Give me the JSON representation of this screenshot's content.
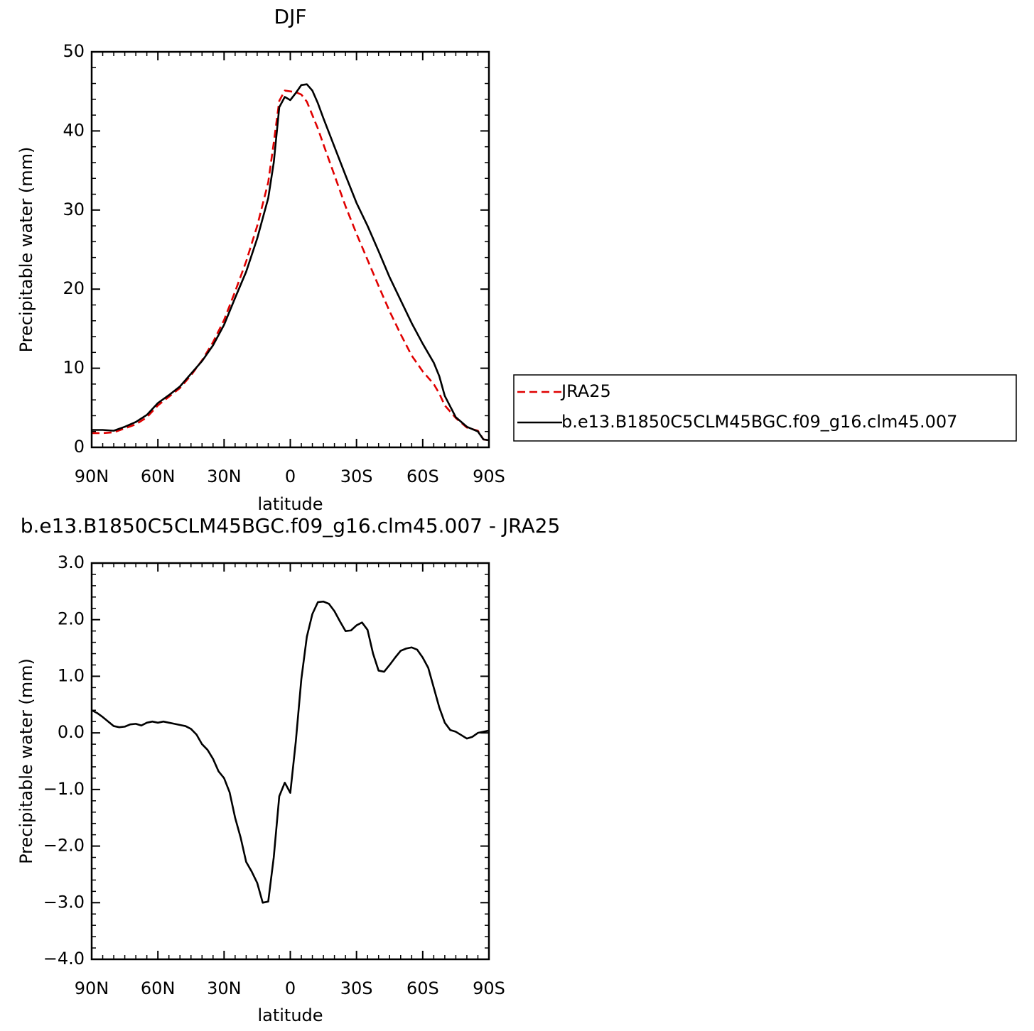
{
  "chart_data": [
    {
      "type": "line",
      "title": "DJF",
      "ylabel": "Precipitable water (mm)",
      "xlabel": "latitude",
      "x": [
        90,
        85,
        80,
        75,
        70,
        65,
        60,
        55,
        50,
        45,
        40,
        35,
        30,
        25,
        20,
        15,
        10,
        7.5,
        5,
        2.5,
        0,
        -2.5,
        -5,
        -7.5,
        -10,
        -12.5,
        -15,
        -20,
        -25,
        -30,
        -35,
        -40,
        -45,
        -50,
        -55,
        -60,
        -65,
        -67.5,
        -70,
        -75,
        -80,
        -85,
        -87.5,
        -90
      ],
      "series": [
        {
          "name": "JRA25",
          "color": "#e00000",
          "line_style": "dashed",
          "values": [
            1.8,
            1.8,
            1.9,
            2.4,
            2.9,
            3.8,
            5.3,
            6.4,
            7.5,
            9.1,
            11.0,
            13.3,
            16.1,
            19.7,
            23.5,
            28.0,
            33.5,
            38.5,
            43.8,
            45.1,
            45.0,
            44.9,
            44.6,
            43.7,
            42.0,
            40.3,
            38.3,
            34.4,
            30.5,
            27.0,
            23.7,
            20.4,
            17.2,
            14.3,
            11.6,
            9.6,
            8.0,
            6.8,
            5.3,
            3.7,
            2.5,
            2.1,
            1.0,
            0.9
          ]
        },
        {
          "name": "b.e13.B1850C5CLM45BGC.f09_g16.clm45.007",
          "color": "#000000",
          "line_style": "solid",
          "values": [
            2.2,
            2.2,
            2.1,
            2.6,
            3.2,
            4.1,
            5.6,
            6.6,
            7.7,
            9.3,
            10.9,
            12.9,
            15.5,
            18.9,
            22.2,
            26.4,
            31.5,
            36.0,
            43.0,
            44.3,
            43.9,
            44.8,
            45.8,
            45.9,
            45.1,
            43.5,
            41.6,
            38.0,
            34.4,
            30.9,
            28.0,
            24.8,
            21.5,
            18.6,
            15.7,
            13.1,
            10.7,
            9.0,
            6.5,
            3.8,
            2.6,
            2.0,
            1.0,
            0.9
          ]
        }
      ],
      "xlim": [
        90,
        -90
      ],
      "xticks": [
        {
          "value": 90,
          "label": "90N"
        },
        {
          "value": 60,
          "label": "60N"
        },
        {
          "value": 30,
          "label": "30N"
        },
        0,
        {
          "value": -30,
          "label": "30S"
        },
        {
          "value": -60,
          "label": "60S"
        },
        {
          "value": -90,
          "label": "90S"
        }
      ],
      "ylim": [
        0,
        50
      ],
      "yticks": [
        0,
        10,
        20,
        30,
        40,
        50
      ],
      "grid": false,
      "legend": "right"
    },
    {
      "type": "line",
      "title": "b.e13.B1850C5CLM45BGC.f09_g16.clm45.007 - JRA25",
      "ylabel": "Precipitable water (mm)",
      "xlabel": "latitude",
      "x": [
        90,
        87.5,
        85,
        82.5,
        80,
        77.5,
        75,
        72.5,
        70,
        67.5,
        65,
        62.5,
        60,
        57.5,
        55,
        52.5,
        50,
        47.5,
        45,
        42.5,
        40,
        37.5,
        35,
        32.5,
        30,
        27.5,
        25,
        22.5,
        20,
        17.5,
        15,
        12.5,
        10,
        7.5,
        5,
        2.5,
        0,
        -2.5,
        -5,
        -7.5,
        -10,
        -12.5,
        -15,
        -17.5,
        -20,
        -22.5,
        -25,
        -27.5,
        -30,
        -32.5,
        -35,
        -37.5,
        -40,
        -42.5,
        -45,
        -47.5,
        -50,
        -52.5,
        -55,
        -57.5,
        -60,
        -62.5,
        -65,
        -67.5,
        -70,
        -72.5,
        -75,
        -77.5,
        -80,
        -82.5,
        -85,
        -87.5,
        -90
      ],
      "values": [
        0.4,
        0.35,
        0.28,
        0.2,
        0.12,
        0.1,
        0.11,
        0.15,
        0.16,
        0.13,
        0.18,
        0.2,
        0.18,
        0.2,
        0.18,
        0.16,
        0.14,
        0.12,
        0.07,
        -0.03,
        -0.2,
        -0.3,
        -0.46,
        -0.68,
        -0.8,
        -1.05,
        -1.5,
        -1.85,
        -2.28,
        -2.45,
        -2.65,
        -3.0,
        -2.98,
        -2.2,
        -1.12,
        -0.88,
        -1.06,
        -0.15,
        0.95,
        1.7,
        2.1,
        2.31,
        2.32,
        2.28,
        2.15,
        1.97,
        1.8,
        1.81,
        1.9,
        1.95,
        1.82,
        1.4,
        1.1,
        1.08,
        1.2,
        1.33,
        1.45,
        1.49,
        1.51,
        1.47,
        1.33,
        1.15,
        0.8,
        0.45,
        0.18,
        0.05,
        0.02,
        -0.04,
        -0.1,
        -0.07,
        0.0,
        0.02,
        0.04
      ],
      "color": "#000000",
      "line_style": "solid",
      "xlim": [
        90,
        -90
      ],
      "xticks": [
        {
          "value": 90,
          "label": "90N"
        },
        {
          "value": 60,
          "label": "60N"
        },
        {
          "value": 30,
          "label": "30N"
        },
        0,
        {
          "value": -30,
          "label": "30S"
        },
        {
          "value": -60,
          "label": "60S"
        },
        {
          "value": -90,
          "label": "90S"
        }
      ],
      "ylim": [
        -4,
        3
      ],
      "yticks": [
        {
          "value": -4,
          "label": "−4.0"
        },
        {
          "value": -3,
          "label": "−3.0"
        },
        {
          "value": -2,
          "label": "−2.0"
        },
        {
          "value": -1,
          "label": "−1.0"
        },
        {
          "value": 0,
          "label": "0.0"
        },
        {
          "value": 1,
          "label": "1.0"
        },
        {
          "value": 2,
          "label": "2.0"
        },
        {
          "value": 3,
          "label": "3.0"
        }
      ],
      "grid": false
    }
  ]
}
